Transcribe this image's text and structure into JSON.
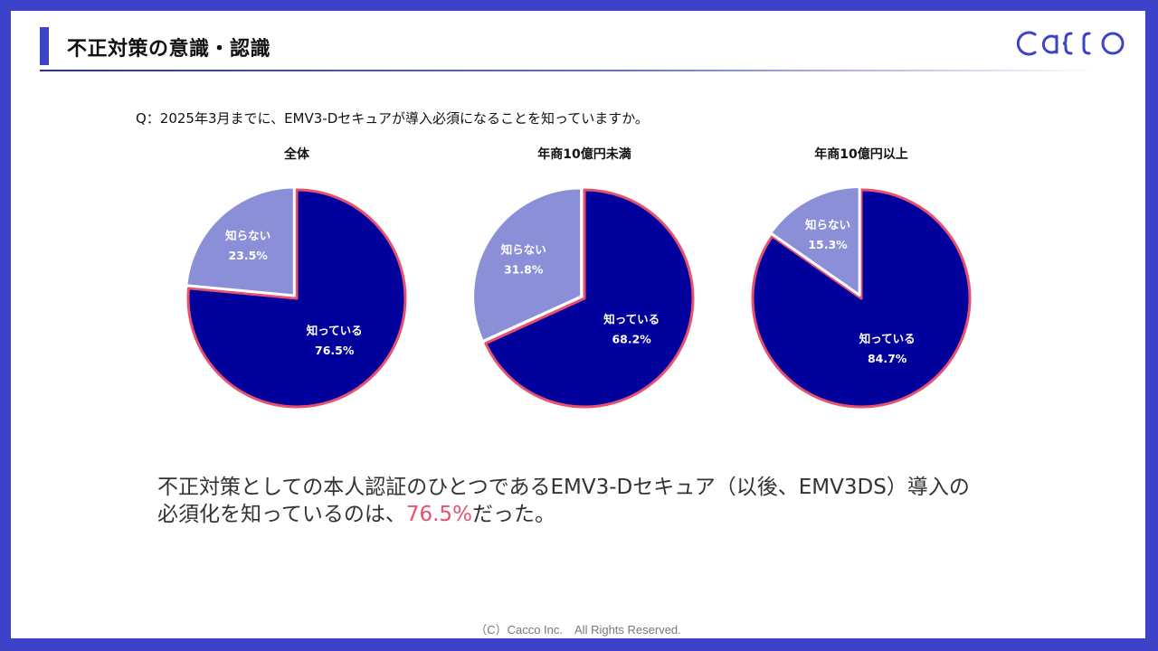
{
  "header": {
    "title": "不正対策の意識・認識",
    "logo_text": "cacco"
  },
  "question": "Q：2025年3月までに、EMV3-Dセキュアが導入必須になることを知っていますか。",
  "colors": {
    "known": "#00009c",
    "unknown": "#8b8fd8",
    "outline": "#e8506e",
    "frame": "#3d43c8"
  },
  "chart_data": [
    {
      "type": "pie",
      "title": "全体",
      "labels": [
        "知っている",
        "知らない"
      ],
      "values": [
        76.5,
        23.5
      ],
      "value_labels": [
        "76.5%",
        "23.5%"
      ]
    },
    {
      "type": "pie",
      "title": "年商10億円未満",
      "labels": [
        "知っている",
        "知らない"
      ],
      "values": [
        68.2,
        31.8
      ],
      "value_labels": [
        "68.2%",
        "31.8%"
      ]
    },
    {
      "type": "pie",
      "title": "年商10億円以上",
      "labels": [
        "知っている",
        "知らない"
      ],
      "values": [
        84.7,
        15.3
      ],
      "value_labels": [
        "84.7%",
        "15.3%"
      ]
    }
  ],
  "summary": {
    "line1": "不正対策としての本人認証のひとつであるEMV3-Dセキュア（以後、EMV3DS）導入の",
    "line2_prefix": "必須化を知っているのは、",
    "highlight": "76.5%",
    "line2_suffix": "だった。"
  },
  "footer": "（C）Cacco Inc.　All Rights Reserved."
}
